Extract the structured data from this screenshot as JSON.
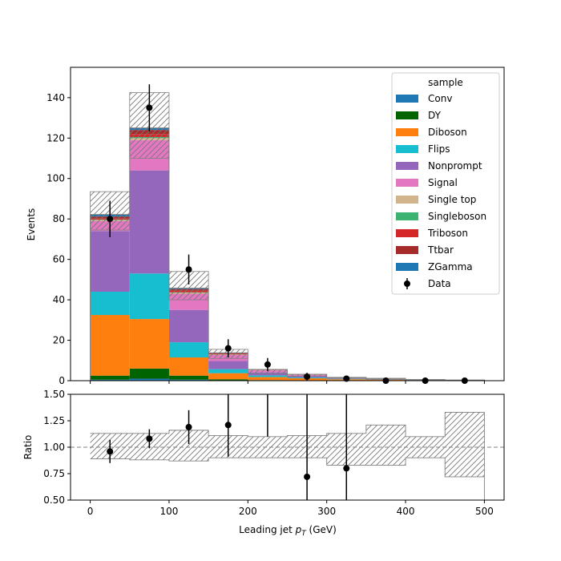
{
  "chart_data": {
    "type": "bar",
    "subtype": "stacked-histogram-with-ratio",
    "x_bin_edges": [
      0,
      50,
      100,
      150,
      200,
      250,
      300,
      350,
      400,
      450,
      500
    ],
    "x_ticks": [
      "0",
      "100",
      "200",
      "300",
      "400",
      "500"
    ],
    "xlabel": "Leading jet  p_T (GeV)",
    "xlabel_main": "Leading jet  ",
    "xlabel_symbol": "p",
    "xlabel_subscript": "T",
    "xlabel_unit": " (GeV)",
    "xlim": [
      -25,
      525
    ],
    "top": {
      "ylabel": "Events",
      "ylim": [
        0,
        155
      ],
      "y_ticks": [
        "0",
        "20",
        "40",
        "60",
        "80",
        "100",
        "120",
        "140"
      ],
      "series": [
        {
          "name": "Conv",
          "color": "#1f77b4",
          "values": [
            0.5,
            1.0,
            0.5,
            0.2,
            0.1,
            0.1,
            0.05,
            0.05,
            0.0,
            0.0
          ]
        },
        {
          "name": "DY",
          "color": "#006400",
          "values": [
            2.0,
            5.0,
            2.0,
            0.5,
            0.2,
            0.1,
            0.05,
            0.05,
            0.0,
            0.0
          ]
        },
        {
          "name": "Diboson",
          "color": "#ff7f0e",
          "values": [
            30.0,
            24.5,
            9.0,
            3.0,
            1.5,
            1.0,
            0.6,
            0.3,
            0.2,
            0.1
          ]
        },
        {
          "name": "Flips",
          "color": "#17becf",
          "values": [
            11.5,
            22.5,
            7.5,
            2.0,
            0.8,
            0.4,
            0.2,
            0.1,
            0.05,
            0.05
          ]
        },
        {
          "name": "Nonprompt",
          "color": "#9467bd",
          "values": [
            30.0,
            51.0,
            16.0,
            4.0,
            1.5,
            0.7,
            0.3,
            0.2,
            0.1,
            0.05
          ]
        },
        {
          "name": "Signal",
          "color": "#e377c2",
          "values": [
            5.0,
            15.0,
            8.0,
            3.0,
            1.0,
            0.6,
            0.3,
            0.2,
            0.1,
            0.05
          ]
        },
        {
          "name": "Single top",
          "color": "#d2b48c",
          "values": [
            0.5,
            1.0,
            0.5,
            0.2,
            0.1,
            0.05,
            0.05,
            0.0,
            0.0,
            0.0
          ]
        },
        {
          "name": "Singleboson",
          "color": "#3cb371",
          "values": [
            0.2,
            0.5,
            0.2,
            0.1,
            0.05,
            0.0,
            0.0,
            0.0,
            0.0,
            0.0
          ]
        },
        {
          "name": "Triboson",
          "color": "#d62728",
          "values": [
            0.5,
            1.5,
            0.8,
            0.3,
            0.1,
            0.05,
            0.05,
            0.0,
            0.0,
            0.0
          ]
        },
        {
          "name": "Ttbar",
          "color": "#a52a2a",
          "values": [
            1.0,
            2.0,
            0.8,
            0.3,
            0.1,
            0.05,
            0.05,
            0.0,
            0.0,
            0.0
          ]
        },
        {
          "name": "ZGamma",
          "color": "#1f77b4",
          "values": [
            1.0,
            1.0,
            0.5,
            0.2,
            0.1,
            0.05,
            0.0,
            0.0,
            0.0,
            0.0
          ]
        }
      ],
      "uncertainty_band": {
        "low": [
          74.5,
          110.0,
          40.0,
          11.0,
          3.5,
          2.2,
          1.2,
          0.6,
          0.4,
          0.15
        ],
        "high": [
          93.5,
          142.5,
          54.0,
          15.5,
          5.5,
          3.2,
          1.6,
          1.2,
          0.6,
          0.35
        ]
      },
      "data": {
        "name": "Data",
        "x": [
          25,
          75,
          125,
          175,
          225,
          275,
          325,
          375,
          425,
          475
        ],
        "y": [
          80,
          135,
          55,
          16,
          8,
          2,
          1,
          0,
          0,
          0
        ],
        "yerr": [
          9,
          11.6,
          7.4,
          4.5,
          3.2,
          1.9,
          1.5,
          0,
          0,
          0
        ]
      }
    },
    "bottom": {
      "ylabel": "Ratio",
      "ylim": [
        0.5,
        1.5
      ],
      "y_ticks": [
        "0.50",
        "0.75",
        "1.00",
        "1.25",
        "1.50"
      ],
      "reference_line": 1.0,
      "band": {
        "low": [
          0.89,
          0.88,
          0.87,
          0.9,
          0.9,
          0.9,
          0.83,
          0.83,
          0.9,
          0.72
        ],
        "high": [
          1.13,
          1.13,
          1.16,
          1.11,
          1.1,
          1.11,
          1.13,
          1.21,
          1.1,
          1.33
        ]
      },
      "points": {
        "x": [
          25,
          75,
          125,
          175,
          225,
          275,
          325
        ],
        "y": [
          0.96,
          1.08,
          1.19,
          1.21,
          1.6,
          0.72,
          0.8
        ],
        "yerr": [
          0.11,
          0.09,
          0.16,
          0.3,
          0.5,
          0.8,
          0.8
        ]
      }
    },
    "legend": {
      "title": "sample",
      "position": "top-right"
    }
  }
}
